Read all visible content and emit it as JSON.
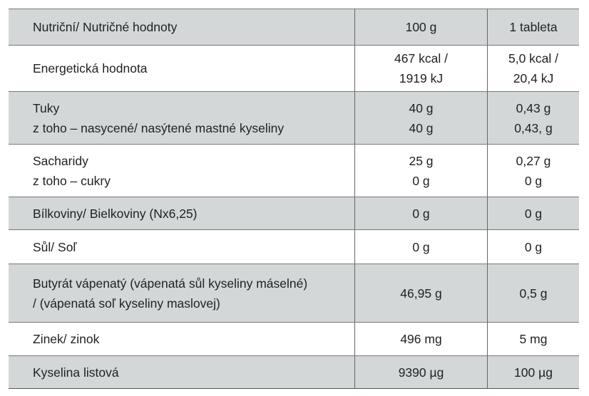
{
  "table": {
    "rows": [
      [
        [
          "Nutriční/ Nutričné hodnoty"
        ],
        [
          "100 g"
        ],
        [
          "1 tableta"
        ]
      ],
      [
        [
          "Energetická hodnota"
        ],
        [
          "467 kcal /",
          "1919 kJ"
        ],
        [
          "5,0 kcal /",
          "20,4 kJ"
        ]
      ],
      [
        [
          "Tuky",
          "z toho – nasycené/ nasýtené mastné kyseliny"
        ],
        [
          "40 g",
          "40 g"
        ],
        [
          "0,43 g",
          "0,43, g"
        ]
      ],
      [
        [
          "Sacharidy",
          "z toho – cukry"
        ],
        [
          "25 g",
          "0 g"
        ],
        [
          "0,27 g",
          "0 g"
        ]
      ],
      [
        [
          "Bílkoviny/ Bielkoviny (Nx6,25)"
        ],
        [
          "0 g"
        ],
        [
          "0 g"
        ]
      ],
      [
        [
          "Sůl/ Soľ"
        ],
        [
          "0 g"
        ],
        [
          "0 g"
        ]
      ],
      [
        [
          "Butyrát vápenatý (vápenatá sůl kyseliny máselné)",
          "/ (vápenatá soľ kyseliny maslovej)"
        ],
        [
          "46,95 g"
        ],
        [
          "0,5 g"
        ]
      ],
      [
        [
          "Zinek/ zinok"
        ],
        [
          "496 mg"
        ],
        [
          "5 mg"
        ]
      ],
      [
        [
          "Kyselina listová"
        ],
        [
          "9390 µg"
        ],
        [
          "100 µg"
        ]
      ]
    ]
  }
}
